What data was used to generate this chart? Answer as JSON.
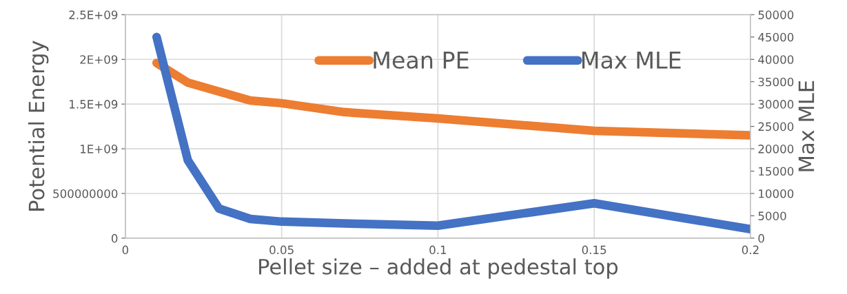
{
  "chart_data": {
    "type": "line",
    "xlabel": "Pellet size – added at pedestal top",
    "ylabel": "Potential Energy",
    "y2label": "Max MLE",
    "x": [
      0.01,
      0.02,
      0.03,
      0.04,
      0.05,
      0.07,
      0.1,
      0.15,
      0.2
    ],
    "series": [
      {
        "name": "Mean PE",
        "color": "#ed7d31",
        "values": [
          1960000000.0,
          1740000000.0,
          1640000000.0,
          1540000000.0,
          1510000000.0,
          1410000000.0,
          1340000000.0,
          1200000000.0,
          1150000000.0
        ]
      },
      {
        "name": "Max MLE",
        "color": "#4472c4",
        "axis": "y2",
        "values": [
          45000,
          17400,
          6600,
          4300,
          3700,
          3300,
          2800,
          7800,
          2000
        ]
      }
    ],
    "xlim": [
      0,
      0.2
    ],
    "xticks": [
      0,
      0.05,
      0.1,
      0.15,
      0.2
    ],
    "ylim": [
      0,
      2500000000.0
    ],
    "yticks": [
      {
        "value": 0,
        "label": "0"
      },
      {
        "value": 500000000.0,
        "label": "500000000"
      },
      {
        "value": 1000000000.0,
        "label": "1E+09"
      },
      {
        "value": 1500000000.0,
        "label": "1.5E+09"
      },
      {
        "value": 2000000000.0,
        "label": "2E+09"
      },
      {
        "value": 2500000000.0,
        "label": "2.5E+09"
      }
    ],
    "y2lim": [
      0,
      50000
    ],
    "y2ticks": [
      0,
      5000,
      10000,
      15000,
      20000,
      25000,
      30000,
      35000,
      40000,
      45000,
      50000
    ],
    "grid": true,
    "legend": "top",
    "marker": "none",
    "line_style": "solid"
  }
}
